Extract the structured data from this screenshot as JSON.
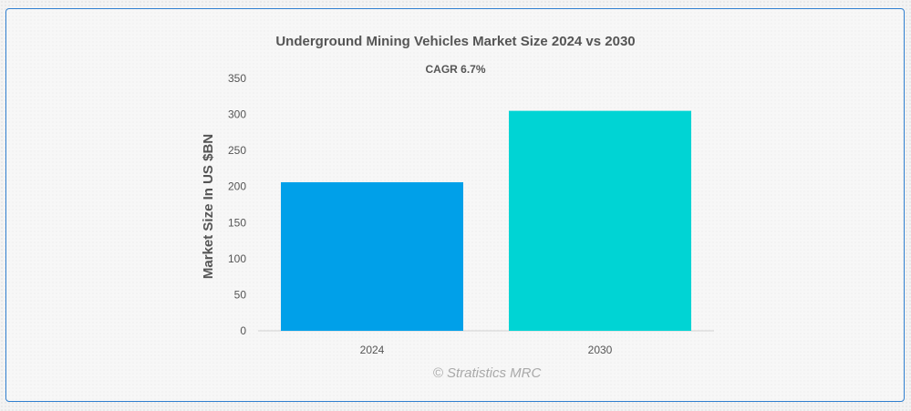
{
  "chart_data": {
    "type": "bar",
    "title": "Underground Mining Vehicles Market Size 2024 vs 2030",
    "subtitle": "CAGR 6.7%",
    "categories": [
      "2024",
      "2030"
    ],
    "values": [
      206,
      305
    ],
    "xlabel": "",
    "ylabel": "Market Size In US $BN",
    "ylim": [
      0,
      350
    ],
    "yticks": [
      0,
      50,
      100,
      150,
      200,
      250,
      300,
      350
    ],
    "grid": false,
    "legend": "none",
    "colors": [
      "#00a0e9",
      "#00d4d4"
    ]
  },
  "watermark": "© Stratistics MRC",
  "colors": {
    "frame": "#2f7fd0",
    "text": "#555555",
    "watermark": "#a9a9a9"
  }
}
